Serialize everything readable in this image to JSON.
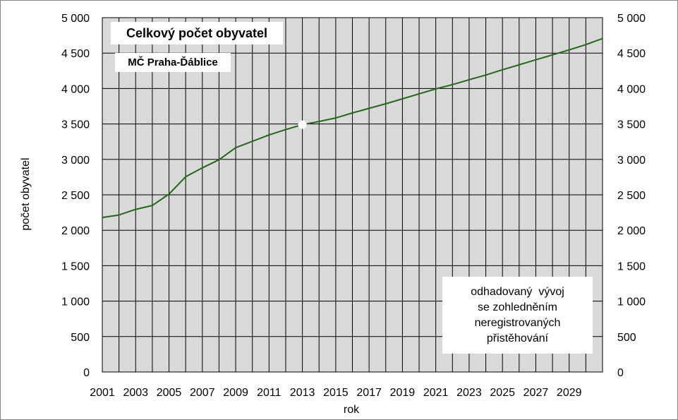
{
  "chart_data": {
    "type": "line",
    "title": "Celkový počet obyvatel",
    "subtitle": "MČ Praha-Ďáblice",
    "xlabel": "rok",
    "ylabel": "počet obyvatel",
    "xlim": [
      2001,
      2031
    ],
    "ylim": [
      0,
      5000
    ],
    "y_ticks": [
      0,
      500,
      1000,
      1500,
      2000,
      2500,
      3000,
      3500,
      4000,
      4500,
      5000
    ],
    "y_tick_labels": [
      "0",
      "500",
      "1 000",
      "1 500",
      "2 000",
      "2 500",
      "3 000",
      "3 500",
      "4 000",
      "4 500",
      "5 000"
    ],
    "x_tick_labels": [
      "2001",
      "2003",
      "2005",
      "2007",
      "2009",
      "2011",
      "2013",
      "2015",
      "2017",
      "2019",
      "2021",
      "2023",
      "2025",
      "2027",
      "2029"
    ],
    "grid": true,
    "secondary_y_axis": true,
    "series": [
      {
        "color": "#1e6b12",
        "x": [
          2001,
          2002,
          2003,
          2004,
          2005,
          2006,
          2007,
          2008,
          2009,
          2010,
          2011,
          2012,
          2013,
          2014,
          2015,
          2016,
          2017,
          2018,
          2019,
          2020,
          2021,
          2022,
          2023,
          2024,
          2025,
          2026,
          2027,
          2028,
          2029,
          2030,
          2031
        ],
        "values": [
          2180,
          2215,
          2295,
          2350,
          2510,
          2755,
          2880,
          2995,
          3165,
          3255,
          3345,
          3420,
          3490,
          3535,
          3585,
          3655,
          3720,
          3785,
          3855,
          3925,
          3995,
          4055,
          4125,
          4190,
          4265,
          4335,
          4405,
          4475,
          4545,
          4620,
          4705
        ]
      }
    ],
    "marker": {
      "x": 2013,
      "y": 3490,
      "color": "#ffffff"
    },
    "annotation": [
      "odhadovaný  vývoj",
      "se zohledněním",
      "neregistrovaných",
      "přistěhování"
    ]
  },
  "colors": {
    "plot_bg": "#d9d9d9",
    "grid": "#000000",
    "line": "#1e6b12"
  }
}
